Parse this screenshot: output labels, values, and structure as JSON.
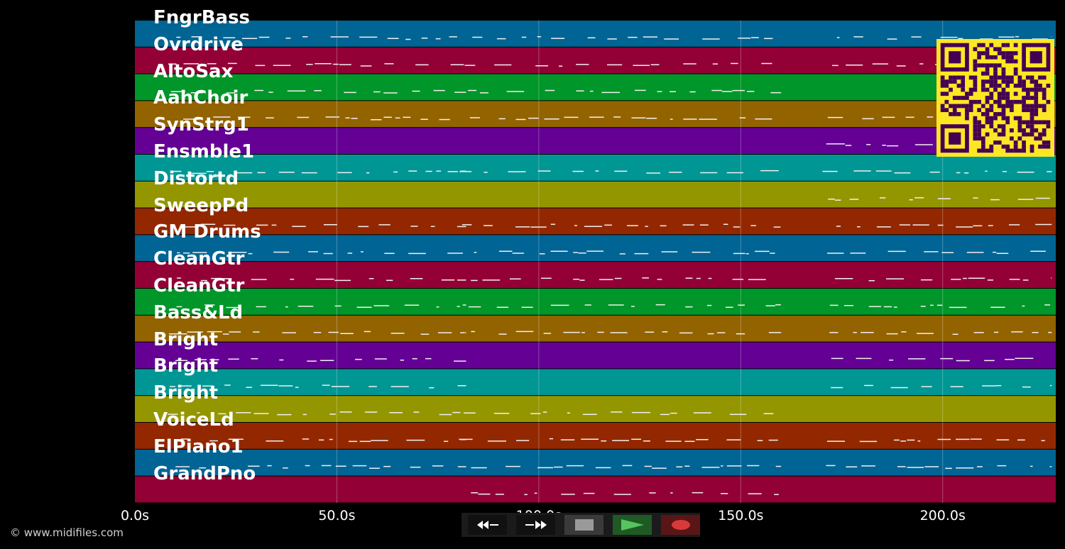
{
  "tracks": [
    {
      "name": "FngrBass",
      "color": "#006494"
    },
    {
      "name": "Ovrdrive",
      "color": "#930035"
    },
    {
      "name": "AltoSax",
      "color": "#009629"
    },
    {
      "name": "AahChoir",
      "color": "#936300"
    },
    {
      "name": "SynStrg1",
      "color": "#640094"
    },
    {
      "name": "Ensmble1",
      "color": "#009694"
    },
    {
      "name": "Distortd",
      "color": "#949600"
    },
    {
      "name": "SweepPd",
      "color": "#932800"
    },
    {
      "name": "GM Drums",
      "color": "#006494"
    },
    {
      "name": "CleanGtr",
      "color": "#930035"
    },
    {
      "name": "CleanGtr",
      "color": "#009629"
    },
    {
      "name": "Bass&Ld",
      "color": "#936300"
    },
    {
      "name": "Bright",
      "color": "#640094"
    },
    {
      "name": "Bright",
      "color": "#009694"
    },
    {
      "name": "Bright",
      "color": "#949600"
    },
    {
      "name": "VoiceLd",
      "color": "#932800"
    },
    {
      "name": "ElPiano1",
      "color": "#006494"
    },
    {
      "name": "GrandPno",
      "color": "#930035"
    }
  ],
  "time_axis": {
    "max_seconds": 228,
    "ticks": [
      {
        "value": 0,
        "label": "0.0s"
      },
      {
        "value": 50,
        "label": "50.0s"
      },
      {
        "value": 100,
        "label": "100.0s"
      },
      {
        "value": 150,
        "label": "150.0s"
      },
      {
        "value": 200,
        "label": "200.0s"
      }
    ]
  },
  "copyright": "© www.midifiles.com",
  "controls": {
    "rewind_icon": "rewind-icon",
    "fast_forward_icon": "fast-forward-icon",
    "stop_icon": "stop-icon",
    "play_icon": "play-icon",
    "record_icon": "record-icon"
  },
  "qr_code_icon": "qr-code-icon"
}
